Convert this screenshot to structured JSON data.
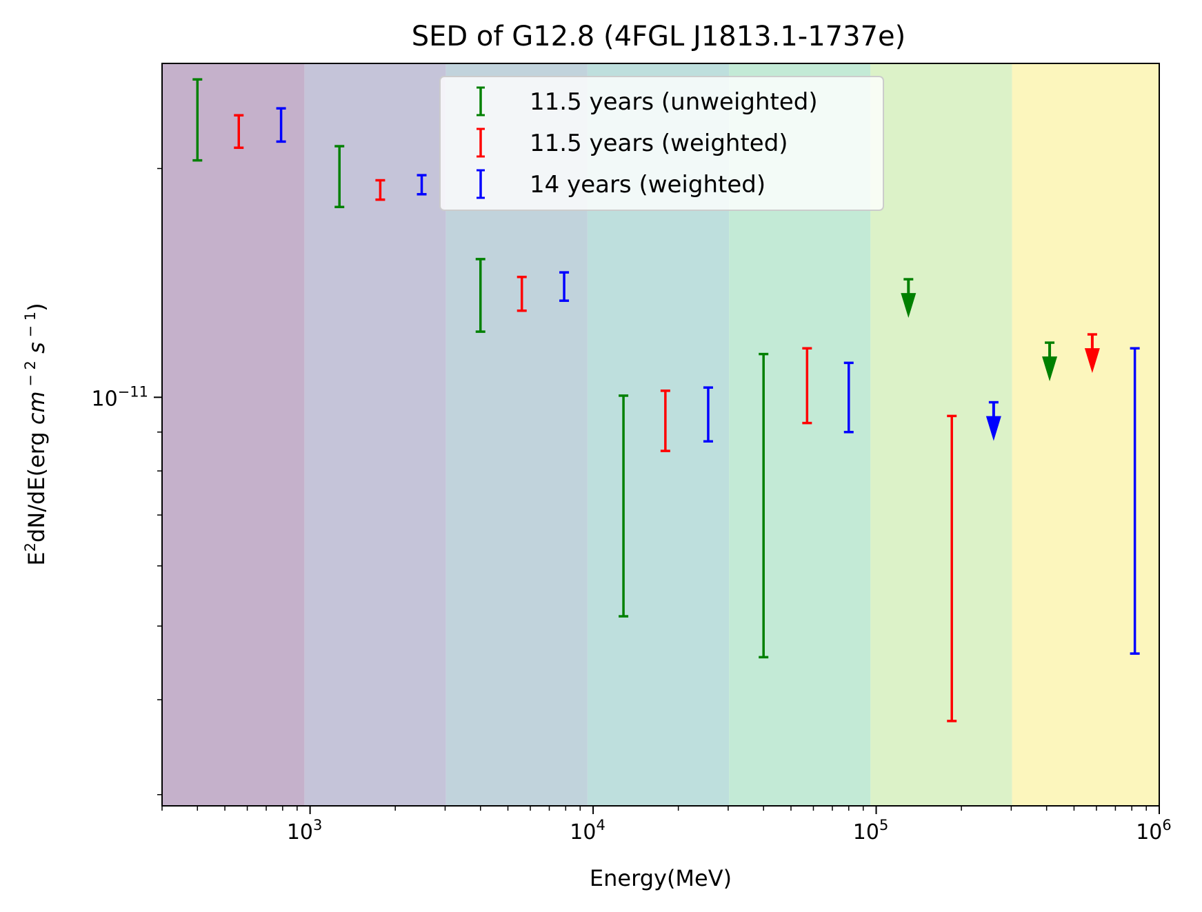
{
  "chart_data": {
    "type": "scatter",
    "title": "SED of G12.8 (4FGL J1813.1-1737e)",
    "xlabel": "Energy(MeV)",
    "ylabel_main": "E",
    "ylabel_sup": "2",
    "ylabel_rest": "dN/dE(erg ",
    "ylabel_cm": "cm",
    "ylabel_minus2": " − 2",
    "ylabel_s": " s",
    "ylabel_minus1": " − 1",
    "ylabel_close": ")",
    "x_scale": "log",
    "y_scale": "log",
    "xlim": [
      300,
      1000000
    ],
    "ylim": [
      2.9e-12,
      2.75e-11
    ],
    "x_ticks": [
      {
        "value": 1000,
        "base": "10",
        "exp": "3"
      },
      {
        "value": 10000,
        "base": "10",
        "exp": "4"
      },
      {
        "value": 100000,
        "base": "10",
        "exp": "5"
      },
      {
        "value": 1000000,
        "base": "10",
        "exp": "6"
      }
    ],
    "y_ticks": [
      {
        "value": 1e-11,
        "base": "10",
        "exp": "−11"
      }
    ],
    "bands": [
      {
        "from": 300,
        "to": 955,
        "color": "#c5b1cb"
      },
      {
        "from": 955,
        "to": 3020,
        "color": "#c5c4d9"
      },
      {
        "from": 3020,
        "to": 9550,
        "color": "#c1d3dc"
      },
      {
        "from": 9550,
        "to": 30200,
        "color": "#bedfdd"
      },
      {
        "from": 30200,
        "to": 95500,
        "color": "#c3ead6"
      },
      {
        "from": 95500,
        "to": 302000,
        "color": "#dcf2c8"
      },
      {
        "from": 302000,
        "to": 1000000,
        "color": "#fcf6bd"
      }
    ],
    "legend_position": "upper center",
    "series": [
      {
        "name": "11.5 years (unweighted)",
        "color": "#008000",
        "points": [
          {
            "x": 400,
            "y_low": 2.05e-11,
            "y_high": 2.62e-11
          },
          {
            "x": 1270,
            "y_low": 1.78e-11,
            "y_high": 2.14e-11
          },
          {
            "x": 4000,
            "y_low": 1.22e-11,
            "y_high": 1.52e-11
          },
          {
            "x": 12800,
            "y_low": 5.15e-12,
            "y_high": 1.005e-11
          },
          {
            "x": 40000,
            "y_low": 4.55e-12,
            "y_high": 1.14e-11
          },
          {
            "x": 130000,
            "upper_limit": 1.43e-11
          },
          {
            "x": 410000,
            "upper_limit": 1.18e-11
          }
        ]
      },
      {
        "name": "11.5 years (weighted)",
        "color": "#ff0000",
        "points": [
          {
            "x": 560,
            "y_low": 2.13e-11,
            "y_high": 2.35e-11
          },
          {
            "x": 1770,
            "y_low": 1.82e-11,
            "y_high": 1.93e-11
          },
          {
            "x": 5600,
            "y_low": 1.3e-11,
            "y_high": 1.44e-11
          },
          {
            "x": 18000,
            "y_low": 8.5e-12,
            "y_high": 1.02e-11
          },
          {
            "x": 57000,
            "y_low": 9.25e-12,
            "y_high": 1.16e-11
          },
          {
            "x": 185000,
            "y_low": 3.75e-12,
            "y_high": 9.45e-12
          },
          {
            "x": 580000,
            "upper_limit": 1.21e-11
          }
        ]
      },
      {
        "name": "14 years (weighted)",
        "color": "#0000ff",
        "points": [
          {
            "x": 790,
            "y_low": 2.17e-11,
            "y_high": 2.4e-11
          },
          {
            "x": 2480,
            "y_low": 1.85e-11,
            "y_high": 1.96e-11
          },
          {
            "x": 7900,
            "y_low": 1.34e-11,
            "y_high": 1.46e-11
          },
          {
            "x": 25500,
            "y_low": 8.75e-12,
            "y_high": 1.03e-11
          },
          {
            "x": 80000,
            "y_low": 9e-12,
            "y_high": 1.11e-11
          },
          {
            "x": 260000,
            "upper_limit": 9.85e-12
          },
          {
            "x": 820000,
            "y_low": 4.6e-12,
            "y_high": 1.16e-11
          }
        ]
      }
    ]
  }
}
